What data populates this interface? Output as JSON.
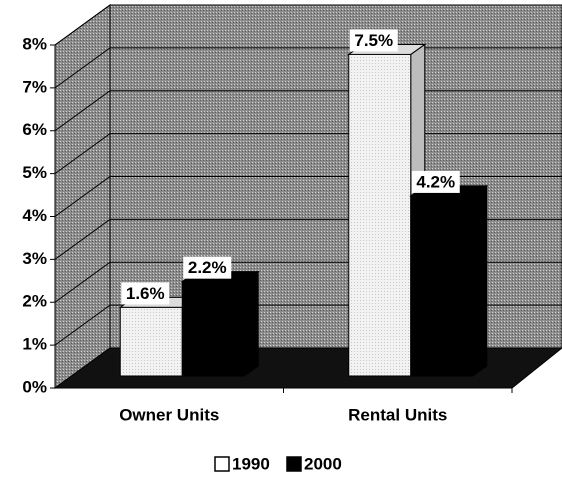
{
  "chart_data": {
    "type": "bar3d",
    "categories": [
      "Owner Units",
      "Rental Units"
    ],
    "series": [
      {
        "name": "1990",
        "color": "#ffffff",
        "values": [
          1.6,
          7.5
        ],
        "value_labels": [
          "1.6%",
          "7.5%"
        ]
      },
      {
        "name": "2000",
        "color": "#000000",
        "values": [
          2.2,
          4.2
        ],
        "value_labels": [
          "2.2%",
          "4.2%"
        ]
      }
    ],
    "ylim": [
      0,
      8
    ],
    "yticks": [
      {
        "value": 0,
        "label": "0%"
      },
      {
        "value": 1,
        "label": "1%"
      },
      {
        "value": 2,
        "label": "2%"
      },
      {
        "value": 3,
        "label": "3%"
      },
      {
        "value": 4,
        "label": "4%"
      },
      {
        "value": 5,
        "label": "5%"
      },
      {
        "value": 6,
        "label": "6%"
      },
      {
        "value": 7,
        "label": "7%"
      },
      {
        "value": 8,
        "label": "8%"
      }
    ],
    "grid": true,
    "legend": "bottom"
  }
}
